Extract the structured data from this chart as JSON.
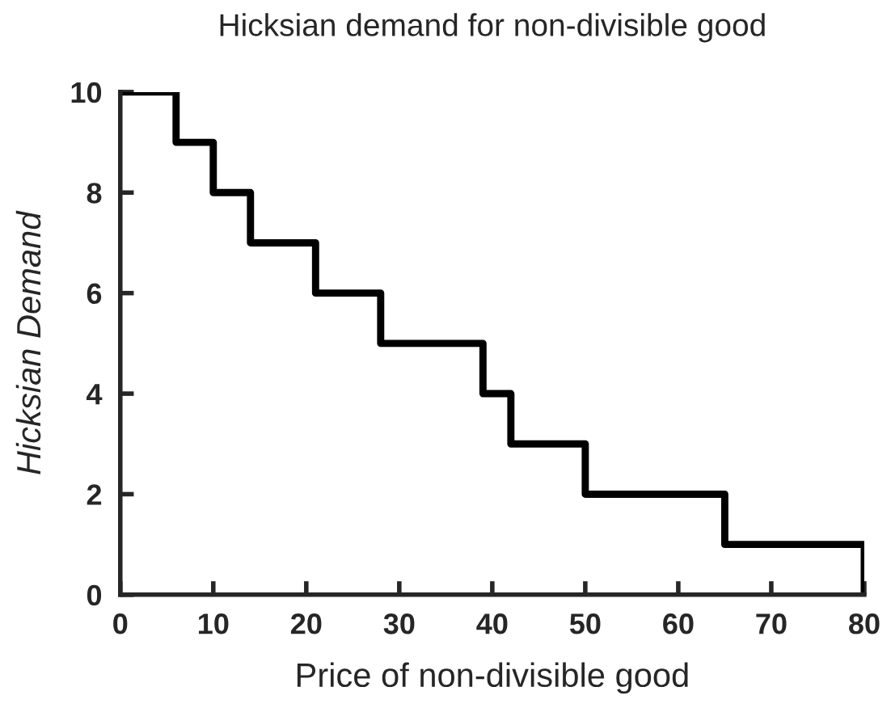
{
  "chart_data": {
    "type": "step",
    "title": "Hicksian demand for non-divisible good",
    "xlabel": "Price of non-divisible good",
    "ylabel": "Hicksian Demand",
    "x": [
      0,
      6,
      10,
      14,
      21,
      28,
      39,
      42,
      50,
      65,
      80
    ],
    "series": [
      {
        "color": "#000000",
        "values": [
          10,
          9,
          8,
          7,
          6,
          5,
          4,
          3,
          2,
          1,
          0
        ]
      }
    ],
    "xlim": [
      0,
      80
    ],
    "ylim": [
      0,
      10
    ],
    "xticks": [
      0,
      10,
      20,
      30,
      40,
      50,
      60,
      70,
      80
    ],
    "yticks": [
      0,
      2,
      4,
      6,
      8,
      10
    ],
    "grid": false,
    "legend": false,
    "marker": "none",
    "line_style": "solid"
  }
}
